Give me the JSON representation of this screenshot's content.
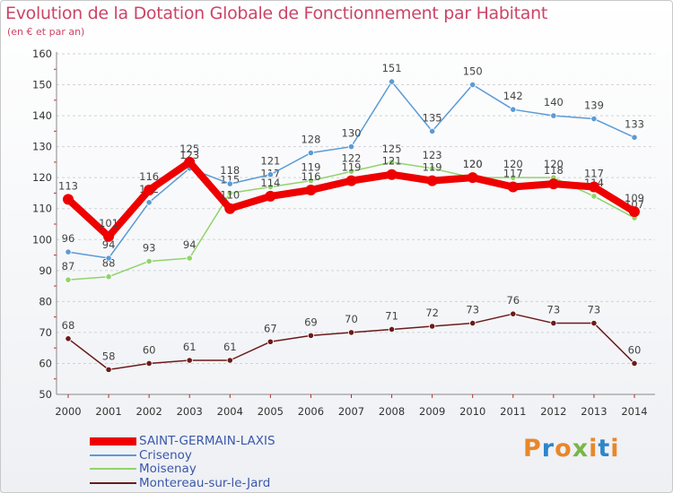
{
  "title": "Evolution de la Dotation Globale de Fonctionnement par Habitant",
  "subtitle": "(en € et par an)",
  "logo": {
    "text": "Proxiti",
    "colors": [
      "#e8872b",
      "#2e86c9",
      "#e8872b",
      "#7ab648",
      "#e8872b",
      "#2e86c9",
      "#e8872b"
    ]
  },
  "chart_data": {
    "type": "line",
    "x": [
      "2000",
      "2001",
      "2002",
      "2003",
      "2004",
      "2005",
      "2006",
      "2007",
      "2008",
      "2009",
      "2010",
      "2011",
      "2012",
      "2013",
      "2014"
    ],
    "ylim": [
      50,
      160
    ],
    "yticks": [
      50,
      60,
      70,
      80,
      90,
      100,
      110,
      120,
      130,
      140,
      150,
      160
    ],
    "grid": "horizontal-dashed",
    "legend": "bottom-left",
    "series": [
      {
        "name": "Montereau-sur-le-Jard",
        "color": "#6b1a1a",
        "values": [
          68,
          58,
          60,
          61,
          61,
          67,
          69,
          70,
          71,
          72,
          73,
          76,
          73,
          73,
          60
        ]
      },
      {
        "name": "Moisenay",
        "color": "#8fd46a",
        "values": [
          87,
          88,
          93,
          94,
          115,
          117,
          119,
          122,
          125,
          123,
          120,
          120,
          120,
          114,
          107
        ]
      },
      {
        "name": "Crisenoy",
        "color": "#5b9bd5",
        "values": [
          96,
          94,
          112,
          123,
          118,
          121,
          128,
          130,
          151,
          135,
          150,
          142,
          140,
          139,
          133
        ]
      },
      {
        "name": "SAINT-GERMAIN-LAXIS",
        "color": "#ee0000",
        "values": [
          113,
          101,
          116,
          125,
          110,
          114,
          116,
          119,
          121,
          119,
          120,
          117,
          118,
          117,
          109
        ]
      }
    ],
    "legend_order": [
      "SAINT-GERMAIN-LAXIS",
      "Crisenoy",
      "Moisenay",
      "Montereau-sur-le-Jard"
    ]
  }
}
